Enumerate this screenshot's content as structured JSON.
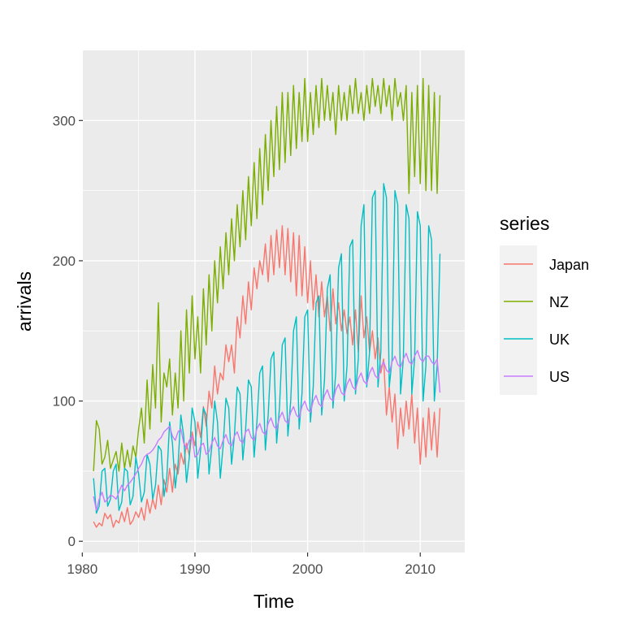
{
  "chart_data": {
    "type": "line",
    "title": "",
    "xlabel": "Time",
    "ylabel": "arrivals",
    "xlim": [
      1980.05,
      2013.95
    ],
    "ylim": [
      -8,
      350
    ],
    "xticks": [
      1980,
      1990,
      2000,
      2010
    ],
    "yticks": [
      0,
      100,
      200,
      300
    ],
    "x_tick_labels": [
      "1980",
      "1990",
      "2000",
      "2010"
    ],
    "y_tick_labels": [
      "0",
      "100",
      "200",
      "300"
    ],
    "grid": true,
    "legend": {
      "title": "series",
      "position": "right"
    },
    "x_start": 1981.0,
    "x_step": 0.25,
    "series": [
      {
        "name": "Japan",
        "color": "#F8766D",
        "values": [
          14,
          10,
          13,
          11,
          20,
          16,
          19,
          10,
          15,
          13,
          21,
          14,
          24,
          12,
          15,
          21,
          17,
          24,
          15,
          30,
          20,
          30,
          23,
          40,
          26,
          44,
          35,
          52,
          35,
          55,
          48,
          63,
          55,
          70,
          61,
          78,
          68,
          85,
          74,
          96,
          82,
          107,
          95,
          125,
          105,
          120,
          115,
          140,
          128,
          140,
          120,
          160,
          145,
          175,
          155,
          185,
          165,
          195,
          180,
          200,
          190,
          212,
          185,
          218,
          190,
          222,
          195,
          225,
          190,
          223,
          185,
          220,
          175,
          218,
          175,
          210,
          170,
          200,
          165,
          190,
          160,
          185,
          160,
          175,
          150,
          180,
          155,
          170,
          150,
          165,
          148,
          160,
          140,
          165,
          135,
          175,
          145,
          160,
          135,
          150,
          130,
          145,
          120,
          130,
          90,
          110,
          85,
          105,
          66,
          95,
          75,
          100,
          80,
          105,
          70,
          95,
          55,
          88,
          60,
          95,
          65,
          92,
          60,
          95
        ]
      },
      {
        "name": "NZ",
        "color": "#7CAE00",
        "values": [
          50,
          86,
          80,
          55,
          60,
          72,
          52,
          58,
          64,
          50,
          70,
          52,
          65,
          53,
          68,
          60,
          80,
          95,
          70,
          115,
          80,
          126,
          95,
          170,
          85,
          120,
          110,
          130,
          90,
          120,
          95,
          150,
          100,
          165,
          120,
          175,
          130,
          160,
          120,
          180,
          140,
          190,
          150,
          200,
          170,
          210,
          180,
          220,
          190,
          230,
          200,
          240,
          210,
          250,
          215,
          260,
          225,
          270,
          230,
          280,
          240,
          290,
          250,
          300,
          260,
          310,
          265,
          320,
          270,
          320,
          275,
          325,
          280,
          320,
          285,
          330,
          285,
          320,
          290,
          325,
          295,
          330,
          300,
          325,
          300,
          320,
          290,
          325,
          300,
          320,
          300,
          325,
          305,
          330,
          305,
          320,
          300,
          325,
          305,
          330,
          310,
          325,
          305,
          330,
          310,
          325,
          300,
          330,
          310,
          320,
          300,
          325,
          248,
          320,
          260,
          325,
          255,
          330,
          250,
          325,
          250,
          320,
          248,
          318
        ]
      },
      {
        "name": "UK",
        "color": "#00BFC4",
        "values": [
          45,
          20,
          25,
          50,
          52,
          25,
          30,
          50,
          55,
          22,
          28,
          52,
          50,
          26,
          32,
          60,
          48,
          28,
          35,
          62,
          55,
          30,
          40,
          68,
          65,
          32,
          45,
          85,
          70,
          38,
          55,
          90,
          75,
          42,
          60,
          95,
          85,
          45,
          65,
          95,
          90,
          48,
          68,
          100,
          85,
          45,
          68,
          102,
          95,
          55,
          75,
          110,
          105,
          58,
          80,
          115,
          110,
          60,
          85,
          120,
          125,
          65,
          90,
          130,
          135,
          70,
          95,
          140,
          145,
          75,
          100,
          150,
          160,
          80,
          105,
          160,
          165,
          85,
          110,
          170,
          175,
          90,
          115,
          180,
          190,
          95,
          120,
          195,
          205,
          100,
          125,
          210,
          215,
          105,
          130,
          225,
          240,
          110,
          135,
          245,
          250,
          110,
          135,
          255,
          245,
          110,
          130,
          250,
          240,
          105,
          130,
          240,
          230,
          105,
          130,
          235,
          225,
          100,
          125,
          225,
          215,
          100,
          125,
          205
        ]
      },
      {
        "name": "US",
        "color": "#C77CFF",
        "values": [
          32,
          22,
          30,
          35,
          28,
          30,
          33,
          32,
          30,
          35,
          40,
          36,
          40,
          42,
          45,
          48,
          52,
          55,
          60,
          62,
          63,
          65,
          68,
          72,
          74,
          78,
          80,
          82,
          75,
          72,
          78,
          80,
          70,
          66,
          72,
          75,
          60,
          62,
          68,
          70,
          62,
          64,
          70,
          74,
          68,
          66,
          72,
          76,
          70,
          68,
          75,
          78,
          72,
          70,
          78,
          80,
          74,
          72,
          80,
          84,
          78,
          76,
          84,
          88,
          82,
          80,
          88,
          92,
          86,
          84,
          92,
          96,
          90,
          88,
          96,
          100,
          94,
          92,
          100,
          104,
          98,
          96,
          104,
          108,
          102,
          100,
          108,
          112,
          106,
          104,
          112,
          116,
          110,
          108,
          116,
          120,
          114,
          112,
          120,
          124,
          118,
          116,
          124,
          128,
          122,
          120,
          128,
          132,
          126,
          124,
          130,
          134,
          128,
          126,
          132,
          136,
          130,
          128,
          132,
          132,
          128,
          126,
          130,
          106
        ]
      }
    ]
  }
}
